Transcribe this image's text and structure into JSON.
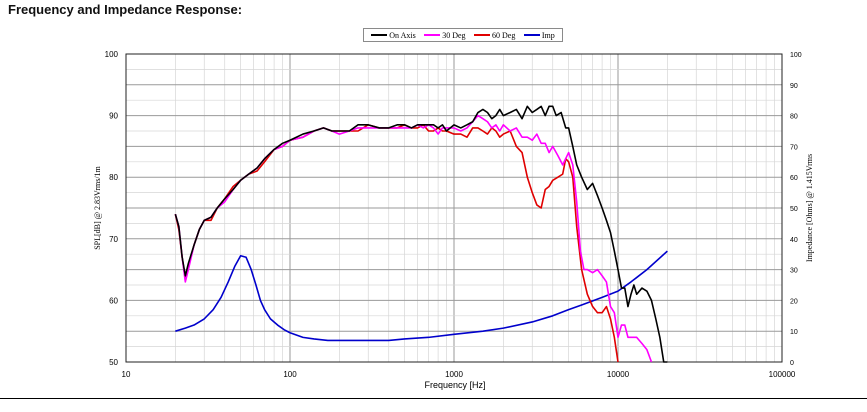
{
  "page_title": "Frequency and Impedance Response:",
  "legend": [
    {
      "name": "On Axis",
      "color": "#000000"
    },
    {
      "name": "30 Deg",
      "color": "#ff00ff"
    },
    {
      "name": "60 Deg",
      "color": "#e00000"
    },
    {
      "name": "Imp",
      "color": "#0000cc"
    }
  ],
  "chart_data": {
    "type": "line",
    "title": "Frequency and Impedance Response:",
    "xlabel": "Frequency [Hz]",
    "ylabel": "SPL[dB] @ 2.83Vrms/1m",
    "y2label": "Impedance [Ohms] @ 1.415Vrms",
    "xscale": "log",
    "xlim": [
      10,
      100000
    ],
    "ylim": [
      50,
      100
    ],
    "y2lim": [
      0,
      100
    ],
    "grid": true,
    "legend_position": "top-center",
    "xticks": [
      "10",
      "100",
      "1000",
      "10000",
      "100000"
    ],
    "yticks": [
      "50",
      "60",
      "70",
      "80",
      "90",
      "100"
    ],
    "y2ticks": [
      "0",
      "10",
      "20",
      "30",
      "40",
      "50",
      "60",
      "70",
      "80",
      "90",
      "100"
    ],
    "series": [
      {
        "name": "On Axis",
        "color": "#000000",
        "axis": "left",
        "x": [
          20,
          21,
          22,
          23,
          24,
          26,
          28,
          30,
          33,
          36,
          40,
          45,
          50,
          56,
          63,
          70,
          80,
          90,
          100,
          120,
          140,
          160,
          180,
          200,
          230,
          260,
          300,
          350,
          400,
          450,
          500,
          550,
          600,
          650,
          700,
          750,
          800,
          850,
          900,
          1000,
          1100,
          1200,
          1300,
          1400,
          1500,
          1600,
          1700,
          1800,
          1900,
          2000,
          2200,
          2400,
          2600,
          2800,
          3000,
          3200,
          3400,
          3600,
          3800,
          4000,
          4200,
          4500,
          4800,
          5000,
          5300,
          5600,
          6000,
          6500,
          7000,
          7500,
          8000,
          8500,
          9000,
          9500,
          10000,
          10500,
          11000,
          11500,
          12000,
          12500,
          13000,
          14000,
          15000,
          16000,
          17000,
          18000,
          19000,
          20000
        ],
        "values": [
          74,
          72,
          67,
          64,
          66,
          69,
          71.5,
          73,
          73.5,
          75,
          76.5,
          78,
          79.5,
          80.5,
          81.5,
          83,
          84.5,
          85.5,
          86,
          87,
          87.5,
          88,
          87.5,
          87.5,
          87.5,
          88.5,
          88.5,
          88,
          88,
          88.5,
          88.5,
          88,
          88.5,
          88.5,
          88.5,
          88.5,
          88,
          88.5,
          87.5,
          88.5,
          88,
          88.5,
          89,
          90.5,
          91,
          90.5,
          89.5,
          90,
          91,
          90,
          90.5,
          91,
          89.5,
          91.5,
          90.5,
          91,
          91.5,
          90,
          91.5,
          91.5,
          90,
          90.5,
          88,
          88,
          85,
          82,
          80,
          78,
          79,
          77,
          75,
          73,
          71,
          68,
          65,
          62,
          62,
          59,
          61,
          62.5,
          61,
          62,
          61.5,
          60,
          57,
          54,
          50,
          48
        ]
      },
      {
        "name": "30 Deg",
        "color": "#ff00ff",
        "axis": "left",
        "x": [
          20,
          21,
          22,
          23,
          24,
          26,
          28,
          30,
          33,
          36,
          40,
          45,
          50,
          56,
          63,
          70,
          80,
          90,
          100,
          120,
          140,
          160,
          180,
          200,
          230,
          260,
          300,
          350,
          400,
          450,
          500,
          550,
          600,
          650,
          700,
          750,
          800,
          850,
          900,
          1000,
          1100,
          1200,
          1300,
          1400,
          1500,
          1600,
          1700,
          1800,
          1900,
          2000,
          2200,
          2400,
          2600,
          2800,
          3000,
          3200,
          3400,
          3600,
          3800,
          4000,
          4300,
          4600,
          5000,
          5300,
          5600,
          5900,
          6200,
          6500,
          7000,
          7500,
          8000,
          8500,
          9000,
          9500,
          10000,
          10500,
          11000,
          11500,
          12000,
          13000,
          14000,
          15000,
          16000
        ],
        "values": [
          74,
          72,
          67,
          63,
          65,
          69,
          71.5,
          73,
          73.5,
          75,
          76,
          78,
          79.5,
          80.5,
          81.5,
          83,
          84.5,
          85,
          86,
          86.5,
          87.5,
          88,
          87.5,
          87,
          87.5,
          88,
          88,
          88,
          88,
          88,
          88,
          88,
          88.5,
          88,
          88.5,
          88,
          87,
          88,
          88,
          88,
          87.5,
          88,
          89,
          90,
          89.5,
          89,
          88,
          88.5,
          87.5,
          88.5,
          87.5,
          88,
          86.5,
          86.5,
          86,
          87,
          85.5,
          85.5,
          84,
          85,
          83.5,
          82,
          84,
          82,
          76,
          68,
          65,
          65,
          64.5,
          65,
          64,
          63,
          59,
          58,
          54,
          56,
          56,
          54,
          54,
          54,
          53,
          52,
          50
        ]
      },
      {
        "name": "60 Deg",
        "color": "#e00000",
        "axis": "left",
        "x": [
          20,
          21,
          22,
          23,
          24,
          26,
          28,
          30,
          33,
          36,
          40,
          45,
          50,
          56,
          63,
          70,
          80,
          90,
          100,
          120,
          140,
          160,
          180,
          200,
          230,
          260,
          300,
          350,
          400,
          450,
          500,
          550,
          600,
          650,
          700,
          750,
          800,
          850,
          900,
          1000,
          1100,
          1200,
          1300,
          1400,
          1500,
          1600,
          1700,
          1800,
          1900,
          2000,
          2200,
          2400,
          2600,
          2800,
          3000,
          3200,
          3400,
          3600,
          3800,
          4000,
          4300,
          4600,
          4800,
          5000,
          5300,
          5600,
          6000,
          6500,
          7000,
          7500,
          8000,
          8500,
          9000,
          9500,
          10000
        ],
        "values": [
          74,
          71.5,
          67,
          63.5,
          65.5,
          69,
          71.5,
          73,
          73,
          75,
          76.5,
          78.5,
          79.5,
          80.5,
          81,
          82.5,
          84.5,
          85,
          86,
          86.5,
          87.5,
          88,
          87.5,
          87.5,
          87.5,
          87.5,
          88.5,
          88,
          88,
          88,
          88.5,
          88,
          88,
          88.5,
          87.5,
          87.5,
          88,
          87.5,
          87.5,
          87,
          87,
          86.5,
          88,
          88,
          87.5,
          87,
          88,
          87.5,
          86.5,
          87,
          87.5,
          85,
          84,
          80,
          77.5,
          75.5,
          75,
          78,
          78.5,
          79.5,
          80,
          80.5,
          83,
          82.5,
          80,
          72,
          65,
          61,
          59,
          58,
          58,
          59,
          57,
          54,
          50
        ]
      },
      {
        "name": "Imp",
        "color": "#0000cc",
        "axis": "right",
        "x": [
          20,
          23,
          26,
          30,
          34,
          38,
          42,
          46,
          50,
          54,
          58,
          62,
          66,
          70,
          76,
          84,
          92,
          100,
          120,
          140,
          170,
          200,
          250,
          300,
          400,
          500,
          700,
          1000,
          1500,
          2000,
          3000,
          4000,
          5000,
          6000,
          8000,
          10000,
          12000,
          15000,
          20000
        ],
        "values": [
          10,
          11,
          12,
          14,
          17,
          21,
          26,
          31,
          34.5,
          34,
          30,
          25,
          20,
          17,
          14,
          12,
          10.5,
          9.5,
          8,
          7.5,
          7,
          7,
          7,
          7,
          7,
          7.5,
          8,
          9,
          10,
          11,
          13,
          15,
          17,
          18.5,
          21,
          23,
          26,
          30,
          36
        ]
      }
    ]
  }
}
